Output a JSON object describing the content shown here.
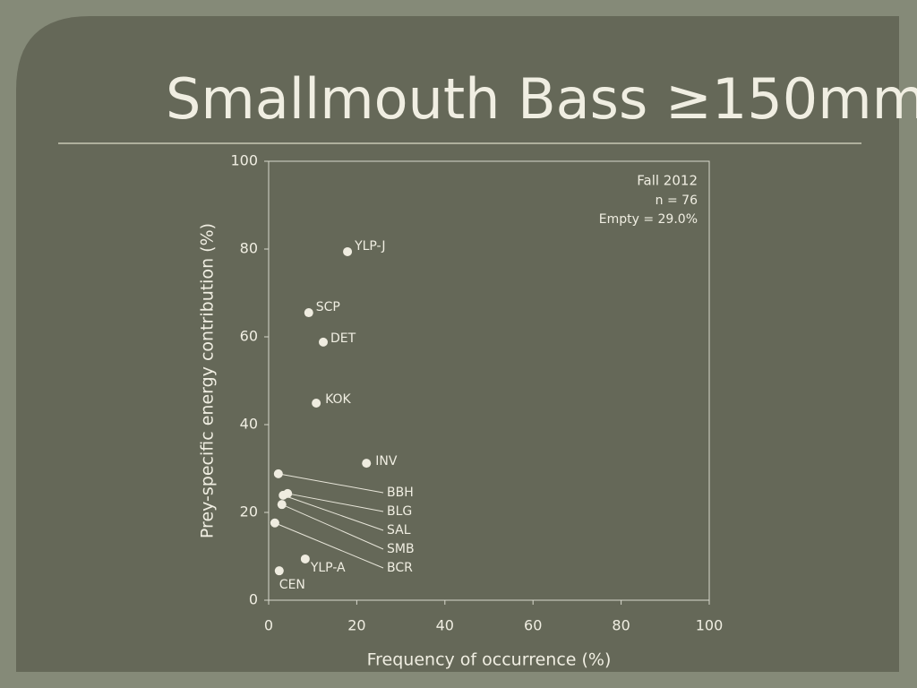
{
  "chart_data": {
    "type": "scatter",
    "title": "Smallmouth Bass ≥150mm",
    "x_label": "Frequency of occurrence (%)",
    "y_label": "Prey-specific energy contribution (%)",
    "annotations": [
      "Fall 2012",
      "n = 76",
      "Empty = 29.0%"
    ],
    "point_labels": [
      "YLP-J",
      "SCP",
      "DET",
      "KOK",
      "INV",
      "BBH",
      "BLG",
      "SAL",
      "SMB",
      "BCR",
      "YLP-A",
      "CEN"
    ],
    "x": [
      17.9,
      9.1,
      12.4,
      10.8,
      22.2,
      2.2,
      4.3,
      3.3,
      3.0,
      1.4,
      8.3,
      2.4
    ],
    "values": [
      79.4,
      65.5,
      58.8,
      44.9,
      31.2,
      28.8,
      24.3,
      23.9,
      21.8,
      17.6,
      9.4,
      6.7
    ],
    "color": "#efece0",
    "xlim": [
      0,
      100
    ],
    "xticks": [
      0,
      20,
      40,
      60,
      80,
      100
    ],
    "ylim": [
      0,
      100
    ],
    "yticks": [
      0,
      20,
      40,
      60,
      80,
      100
    ]
  }
}
